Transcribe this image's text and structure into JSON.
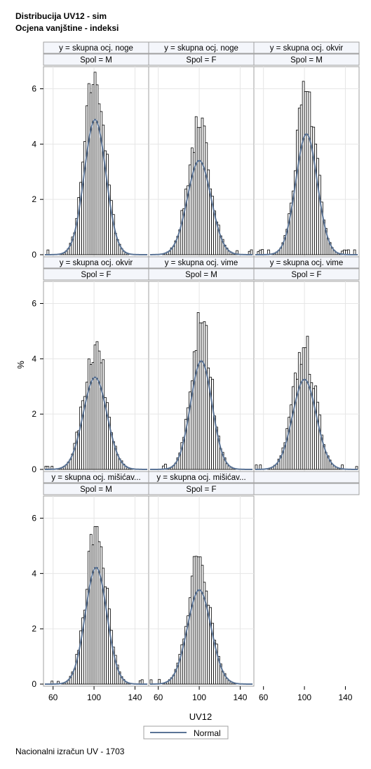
{
  "title_line1": "Distribucija UV12 - sim",
  "title_line2": "Ocjena vanjštine - indeksi",
  "footer": "Nacionalni izračun UV - 1703",
  "chart_data": {
    "type": "histogram-panel",
    "xlabel": "UV12",
    "ylabel": "%",
    "x_ticks": [
      60,
      100,
      140
    ],
    "y_ticks": [
      0,
      2,
      4,
      6
    ],
    "xlim": [
      52,
      152
    ],
    "ylim": [
      0,
      6.8
    ],
    "legend": {
      "label": "Normal",
      "position": "bottom-center"
    },
    "colors": {
      "bar_fill": "#ffffff",
      "bar_stroke": "#000000",
      "curve": "#5b7496",
      "header_bg": "#f4f6fb",
      "grid": "#e6e6e6",
      "frame": "#a0a0a0"
    },
    "panels": [
      {
        "y": "y = skupna ocj. noge",
        "spol": "Spol = M",
        "peak": 6.6,
        "mean": 101,
        "sd": 10
      },
      {
        "y": "y = skupna ocj. noge",
        "spol": "Spol = F",
        "peak": 4.6,
        "mean": 100,
        "sd": 11
      },
      {
        "y": "y = skupna ocj. okvir",
        "spol": "Spol = M",
        "peak": 5.9,
        "mean": 102,
        "sd": 10
      },
      {
        "y": "y = skupna ocj. okvir",
        "spol": "Spol = F",
        "peak": 4.5,
        "mean": 101,
        "sd": 11
      },
      {
        "y": "y = skupna ocj. vime",
        "spol": "Spol = M",
        "peak": 5.3,
        "mean": 102,
        "sd": 10
      },
      {
        "y": "y = skupna ocj. vime",
        "spol": "Spol = F",
        "peak": 4.4,
        "mean": 100,
        "sd": 11
      },
      {
        "y": "y = skupna ocj. mišićav...",
        "spol": "Spol = M",
        "peak": 5.7,
        "mean": 102,
        "sd": 10
      },
      {
        "y": "y = skupna ocj. mišićav...",
        "spol": "Spol = F",
        "peak": 4.6,
        "mean": 100,
        "sd": 11
      }
    ]
  }
}
